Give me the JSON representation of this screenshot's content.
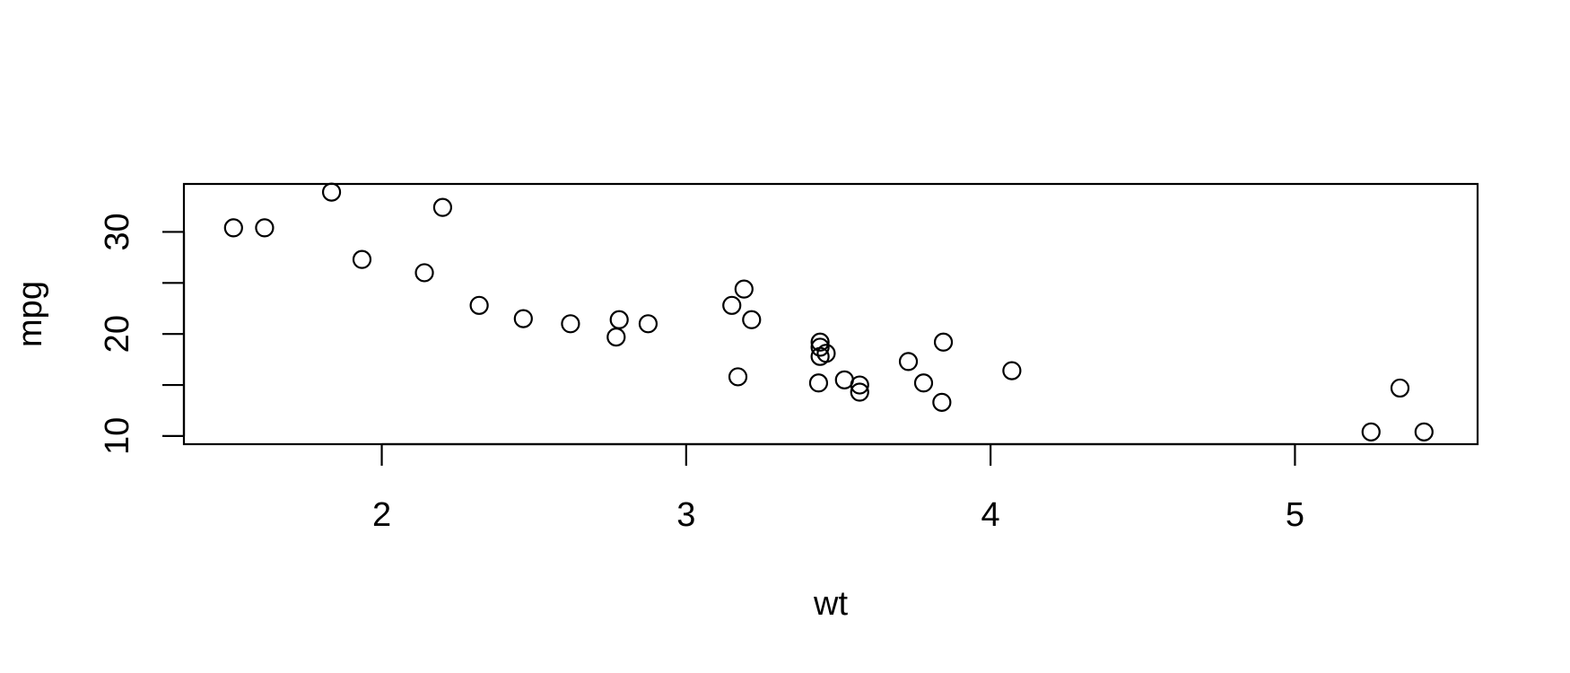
{
  "chart_data": {
    "type": "scatter",
    "title": "",
    "xlabel": "wt",
    "ylabel": "mpg",
    "xlim": [
      1.35,
      5.6
    ],
    "ylim": [
      9.2,
      34.7
    ],
    "xticks": [
      2,
      3,
      4,
      5
    ],
    "xtick_labels": [
      "2",
      "3",
      "4",
      "5"
    ],
    "yticks": [
      10,
      15,
      20,
      25,
      30
    ],
    "ytick_labels": [
      "10",
      "",
      "20",
      "",
      "30"
    ],
    "grid": false,
    "legend": "none",
    "marker": "open-circle",
    "colors": {
      "marker": "#000000",
      "axes": "#000000",
      "background": "#ffffff"
    },
    "series": [
      {
        "x": [
          2.62,
          2.875,
          2.32,
          3.215,
          3.44,
          3.46,
          3.57,
          3.19,
          3.15,
          3.44,
          3.44,
          4.07,
          3.73,
          3.78,
          5.25,
          5.424,
          5.345,
          2.2,
          1.615,
          1.835,
          2.465,
          3.52,
          3.435,
          3.84,
          3.845,
          1.935,
          2.14,
          1.513,
          3.17,
          2.77,
          3.57,
          2.78
        ],
        "y": [
          21.0,
          21.0,
          22.8,
          21.4,
          18.7,
          18.1,
          14.3,
          24.4,
          22.8,
          19.2,
          17.8,
          16.4,
          17.3,
          15.2,
          10.4,
          10.4,
          14.7,
          32.4,
          30.4,
          33.9,
          21.5,
          15.5,
          15.2,
          13.3,
          19.2,
          27.3,
          26.0,
          30.4,
          15.8,
          19.7,
          15.0,
          21.4
        ]
      }
    ]
  }
}
